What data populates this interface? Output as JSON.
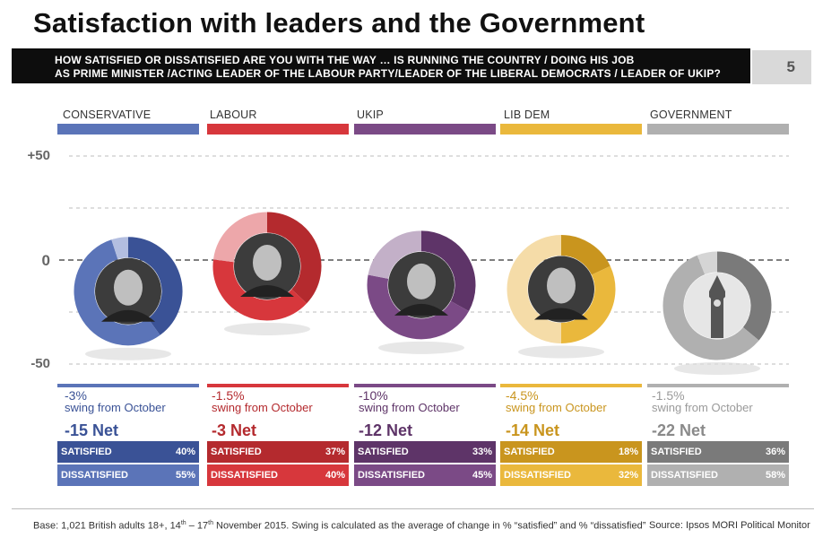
{
  "title": "Satisfaction with leaders and the Government",
  "question": {
    "line1": "HOW SATISFIED OR DISSATISFIED ARE YOU WITH THE WAY … IS RUNNING THE COUNTRY / DOING HIS JOB",
    "line2": "AS PRIME MINISTER /ACTING LEADER OF THE LABOUR PARTY/LEADER OF THE LIBERAL DEMOCRATS / LEADER OF UKIP?"
  },
  "page_number": "5",
  "axis": {
    "top": "+50",
    "zero": "0",
    "bottom": "-50"
  },
  "chart_data": {
    "type": "donut",
    "ylim": [
      -50,
      50
    ],
    "y_ticks": [
      "+50",
      "0",
      "-50"
    ],
    "series": [
      {
        "name": "CONSERVATIVE",
        "satisfied": 40,
        "dissatisfied": 55,
        "net": -15,
        "net_label": "-15 Net",
        "swing": "-3%",
        "swing_text": "swing from October",
        "color": "#5b74b8",
        "color_dark": "#3a5296",
        "color_light": "#b3bee0",
        "icon": "david-cameron-photo"
      },
      {
        "name": "LABOUR",
        "satisfied": 37,
        "dissatisfied": 40,
        "net": -3,
        "net_label": "-3 Net",
        "swing": "-1.5%",
        "swing_text": "swing from October",
        "color": "#d7373c",
        "color_dark": "#b42a2e",
        "color_light": "#eda7aa",
        "icon": "jeremy-corbyn-photo"
      },
      {
        "name": "UKIP",
        "satisfied": 33,
        "dissatisfied": 45,
        "net": -12,
        "net_label": "-12 Net",
        "swing": "-10%",
        "swing_text": "swing from October",
        "color": "#7b4a86",
        "color_dark": "#5e3468",
        "color_light": "#c3b0c8",
        "icon": "nigel-farage-photo"
      },
      {
        "name": "LIB DEM",
        "satisfied": 18,
        "dissatisfied": 32,
        "net": -14,
        "net_label": "-14 Net",
        "swing": "-4.5%",
        "swing_text": "swing from October",
        "color": "#eab83c",
        "color_dark": "#c9951e",
        "color_light": "#f5dca8",
        "icon": "tim-farron-photo"
      },
      {
        "name": "GOVERNMENT",
        "satisfied": 36,
        "dissatisfied": 58,
        "net": -22,
        "net_label": "-22 Net",
        "swing": "-1.5%",
        "swing_text": "swing from October",
        "color": "#b0b0b0",
        "color_dark": "#7a7a7a",
        "color_light": "#d5d5d5",
        "icon": "big-ben-photo"
      }
    ]
  },
  "table_labels": {
    "satisfied": "SATISFIED",
    "dissatisfied": "DISSATISFIED"
  },
  "table": [
    {
      "satisfied": "40%",
      "dissatisfied": "55%"
    },
    {
      "satisfied": "37%",
      "dissatisfied": "40%"
    },
    {
      "satisfied": "33%",
      "dissatisfied": "45%"
    },
    {
      "satisfied": "18%",
      "dissatisfied": "32%"
    },
    {
      "satisfied": "36%",
      "dissatisfied": "58%"
    }
  ],
  "footer": {
    "base": "Base: 1,021 British adults 18+, 14",
    "base_sup1": "th",
    "base_mid": " – 17",
    "base_sup2": "th",
    "base_rest": " November 2015. Swing is calculated as the average of change in % “satisfied” and % “dissatisfied”",
    "source": "Source: Ipsos MORI Political Monitor"
  }
}
